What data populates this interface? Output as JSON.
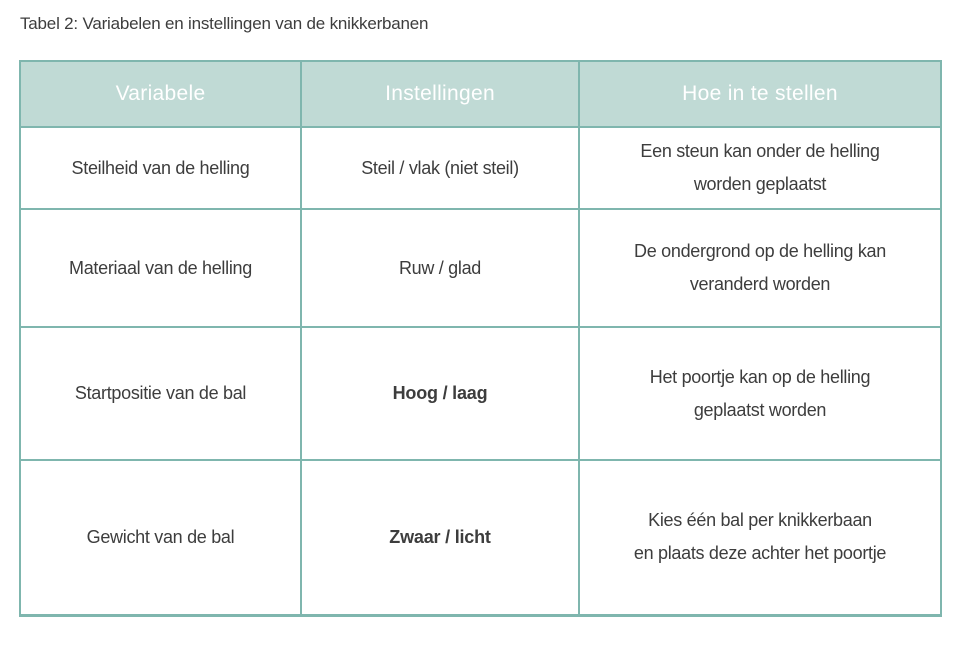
{
  "page": {
    "title": "Tabel 2: Variabelen en instellingen van de knikkerbanen"
  },
  "colors": {
    "table_border": "#7fb6ae",
    "header_fill": "#c0dad5",
    "header_text": "#ffffff",
    "body_text": "#3d3d3d"
  },
  "table": {
    "headers": [
      "Variabele",
      "Instellingen",
      "Hoe in te stellen"
    ],
    "rows": [
      {
        "variabele": "Steilheid van de helling",
        "instellingen": "Steil / vlak (niet steil)",
        "hoe": [
          "Een steun kan onder de helling",
          "worden geplaatst"
        ]
      },
      {
        "variabele": "Materiaal van de helling",
        "instellingen": "Ruw / glad",
        "hoe": [
          "De ondergrond op de helling kan",
          "veranderd worden"
        ]
      },
      {
        "variabele": "Startpositie van de bal",
        "instellingen": "Hoog / laag",
        "hoe": [
          "Het poortje kan op de helling",
          "geplaatst worden"
        ]
      },
      {
        "variabele": "Gewicht van de bal",
        "instellingen": "Zwaar / licht",
        "hoe": [
          "Kies één bal per knikkerbaan",
          "en plaats deze achter het poortje"
        ]
      }
    ]
  }
}
